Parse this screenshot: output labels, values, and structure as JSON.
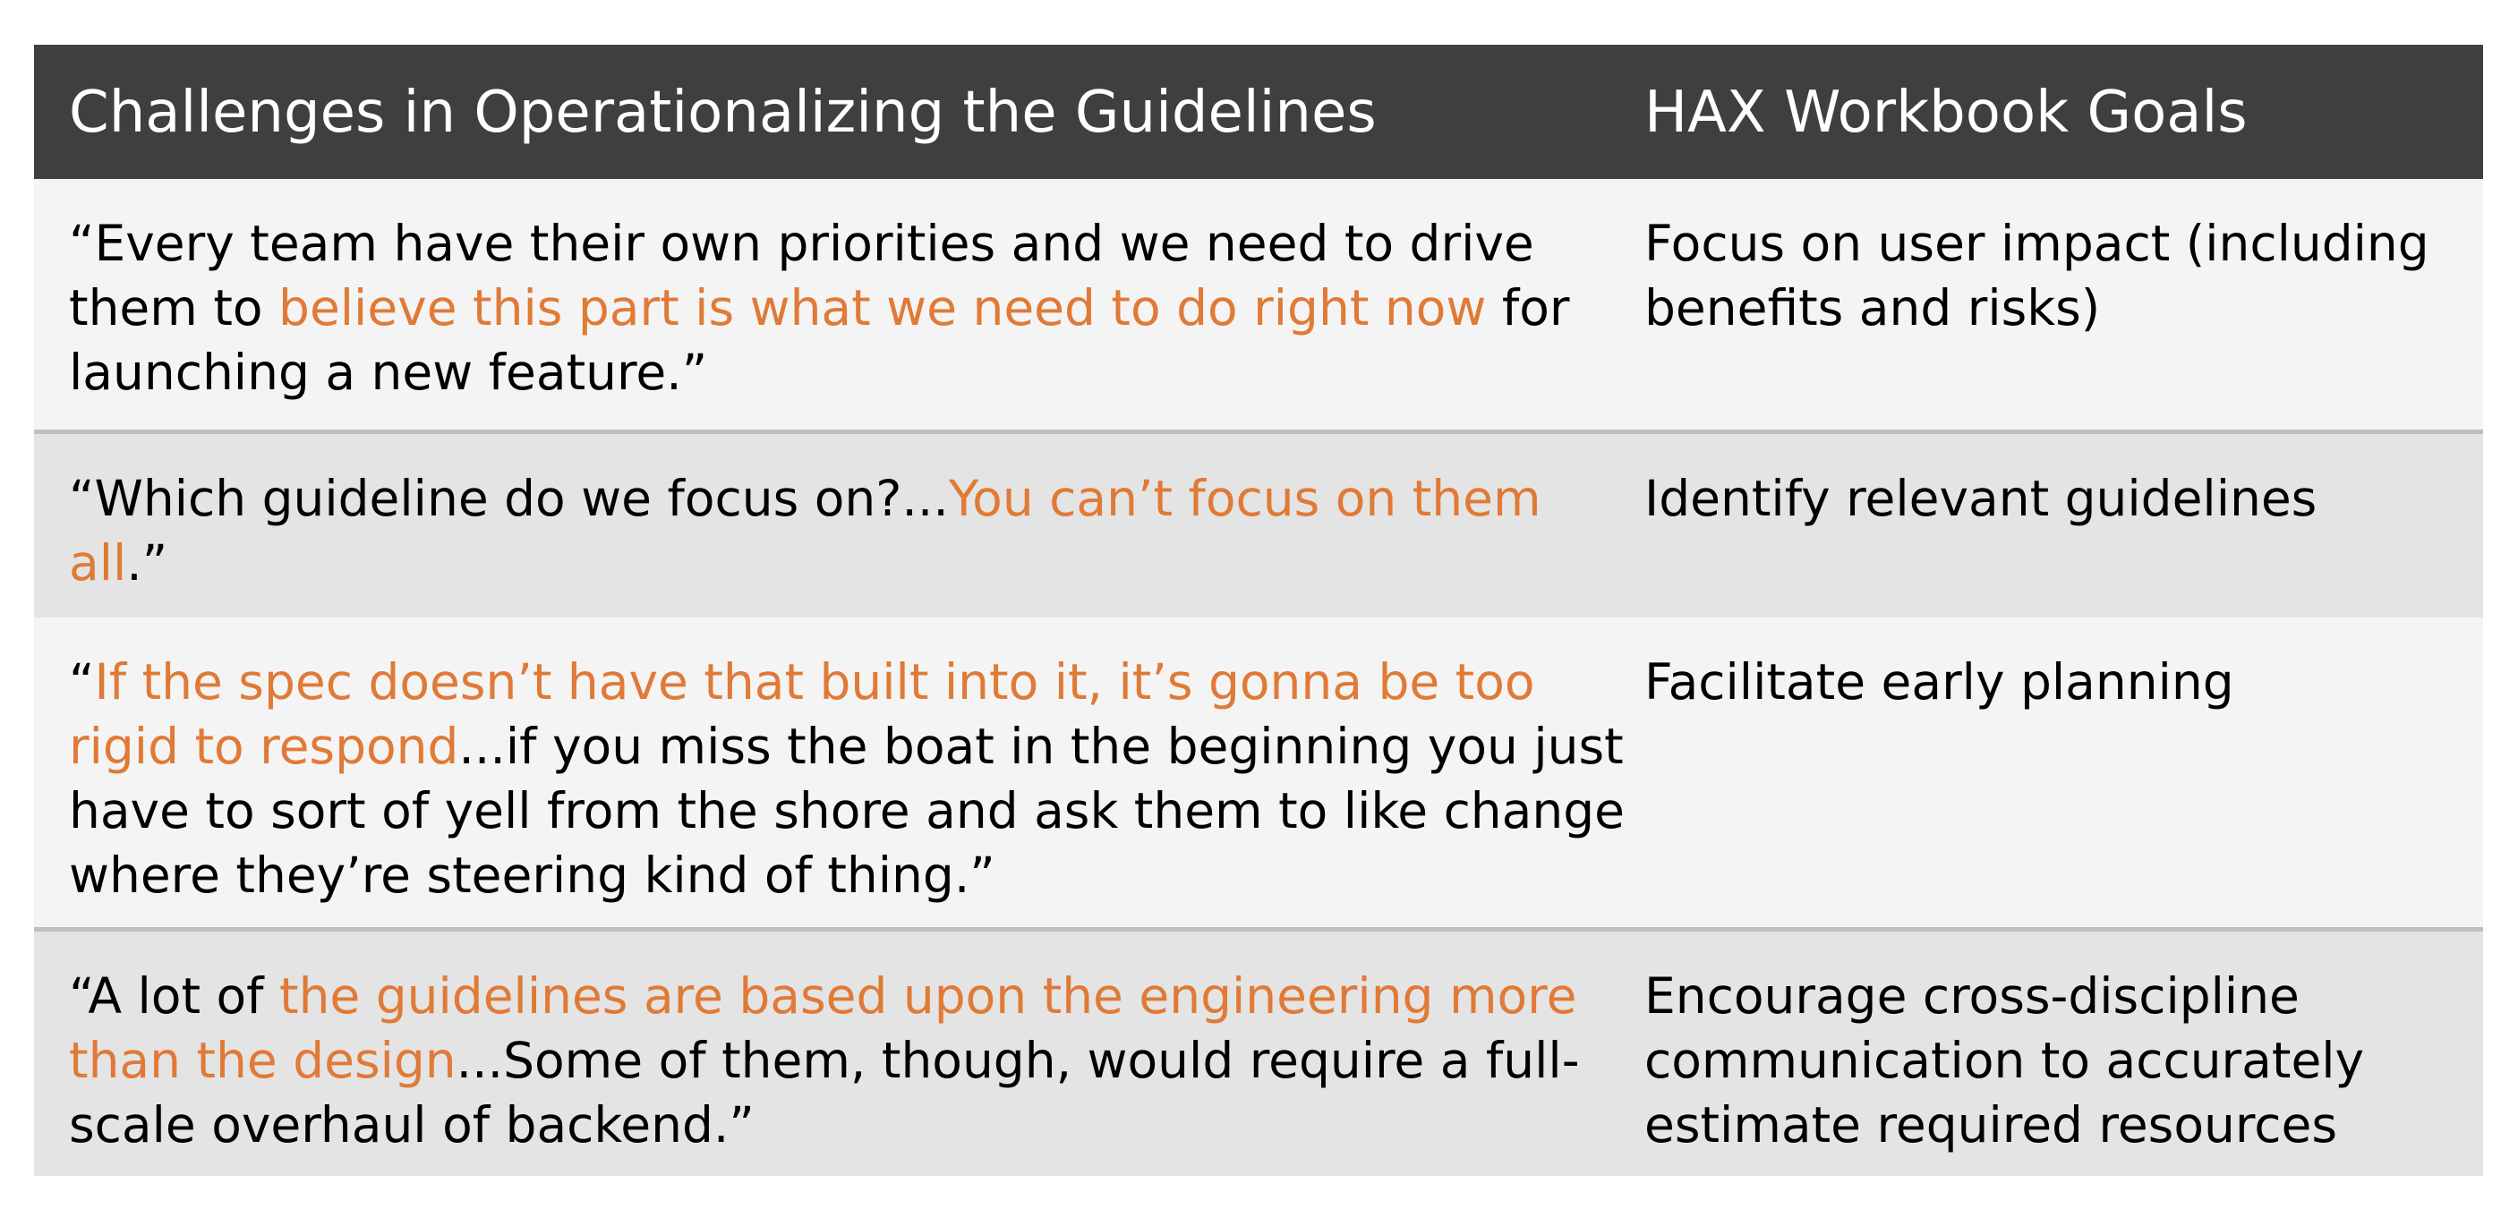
{
  "header": {
    "col1": "Challenges in Operationalizing the Guidelines",
    "col2": "HAX Workbook Goals"
  },
  "rows": [
    {
      "quote": {
        "pre": "“Every team have their own priorities and we need to drive them to ",
        "highlight": "believe this part is what we need to do right now",
        "post": " for launching a new feature.”"
      },
      "goal": "Focus on user impact (including benefits and risks)"
    },
    {
      "quote": {
        "pre": "“Which guideline do we focus on?...",
        "highlight": "You can’t focus on them all",
        "post": ".”"
      },
      "goal": "Identify relevant guidelines"
    },
    {
      "quote": {
        "pre": "“",
        "highlight": "If the spec doesn’t have that built into it, it’s gonna be too rigid to respond",
        "post": "...if you miss the boat in the beginning you just have to sort of yell from the shore and ask them to like change where they’re steering kind of thing.”"
      },
      "goal": "Facilitate early planning"
    },
    {
      "quote": {
        "pre": "“A lot of ",
        "highlight": "the guidelines are based upon the engineering more than the design",
        "post": "...Some of them, though, would require a full-scale overhaul of backend.”"
      },
      "goal": "Encourage cross-discipline communication to accurately estimate required resources"
    }
  ],
  "colors": {
    "header_bg": "#3f3f3f",
    "highlight": "#e07a36",
    "row_light": "#f4f4f4",
    "row_dark": "#e4e4e4"
  }
}
